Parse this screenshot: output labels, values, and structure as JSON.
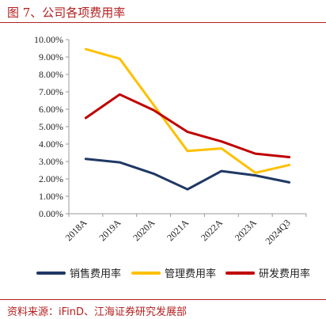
{
  "figure": {
    "title": "图 7、公司各项费用率",
    "source": "资料来源：iFinD、江海证券研究发展部"
  },
  "colors": {
    "accent": "#b32020",
    "axis": "#999999",
    "text": "#222222"
  },
  "chart_data": {
    "type": "line",
    "categories": [
      "2018A",
      "2019A",
      "2020A",
      "2021A",
      "2022A",
      "2023A",
      "2024Q3"
    ],
    "yticks": [
      "0.00%",
      "1.00%",
      "2.00%",
      "3.00%",
      "4.00%",
      "5.00%",
      "6.00%",
      "7.00%",
      "8.00%",
      "9.00%",
      "10.00%"
    ],
    "ylim": [
      0,
      10
    ],
    "grid": false,
    "legend_position": "bottom",
    "series": [
      {
        "name": "销售费用率",
        "color": "#1f3864",
        "values": [
          3.15,
          2.95,
          2.3,
          1.4,
          2.45,
          2.2,
          1.8
        ]
      },
      {
        "name": "管理费用率",
        "color": "#ffc000",
        "values": [
          9.45,
          8.9,
          6.25,
          3.6,
          3.75,
          2.35,
          2.8
        ]
      },
      {
        "name": "研发费用率",
        "color": "#c00000",
        "values": [
          5.5,
          6.85,
          5.95,
          4.7,
          4.15,
          3.45,
          3.25
        ]
      }
    ]
  }
}
